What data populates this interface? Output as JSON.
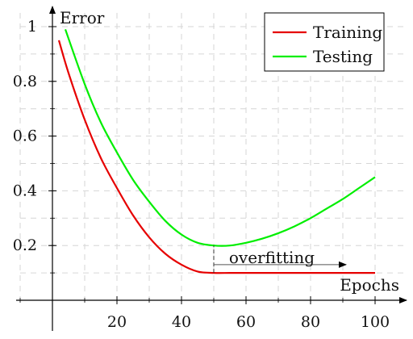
{
  "chart_data": {
    "type": "line",
    "xlabel": "Epochs",
    "ylabel": "Error",
    "xlim": [
      -10,
      110
    ],
    "ylim": [
      -0.01,
      1.05
    ],
    "xticks": [
      20,
      40,
      60,
      80,
      100
    ],
    "yticks": [
      0.2,
      0.4,
      0.6,
      0.8,
      1
    ],
    "xtick_labels": [
      "20",
      "40",
      "60",
      "80",
      "100"
    ],
    "ytick_labels": [
      "0.2",
      "0.4",
      "0.6",
      "0.8",
      "1"
    ],
    "grid": true,
    "legend_position": "top-right",
    "series": [
      {
        "name": "Training",
        "color": "#e60000",
        "x": [
          2,
          5,
          10,
          15,
          20,
          25,
          30,
          35,
          40,
          45,
          50,
          55,
          60,
          65,
          70,
          75,
          80,
          85,
          90,
          95,
          100
        ],
        "y": [
          0.95,
          0.83,
          0.66,
          0.52,
          0.41,
          0.31,
          0.23,
          0.17,
          0.13,
          0.105,
          0.1,
          0.1,
          0.1,
          0.1,
          0.1,
          0.1,
          0.1,
          0.1,
          0.1,
          0.1,
          0.1
        ]
      },
      {
        "name": "Testing",
        "color": "#00ee00",
        "x": [
          4,
          10,
          15,
          20,
          25,
          30,
          35,
          40,
          45,
          50,
          55,
          60,
          65,
          70,
          75,
          80,
          85,
          90,
          95,
          100
        ],
        "y": [
          0.99,
          0.79,
          0.65,
          0.54,
          0.44,
          0.36,
          0.29,
          0.24,
          0.21,
          0.2,
          0.2,
          0.21,
          0.225,
          0.245,
          0.27,
          0.3,
          0.335,
          0.37,
          0.41,
          0.45
        ]
      }
    ],
    "annotations": [
      {
        "text": "overfitting",
        "arrow_from": [
          50,
          0.145
        ],
        "arrow_to": [
          91,
          0.145
        ],
        "marker_line_x": 50,
        "marker_line_y": [
          0.1,
          0.2
        ]
      }
    ]
  }
}
